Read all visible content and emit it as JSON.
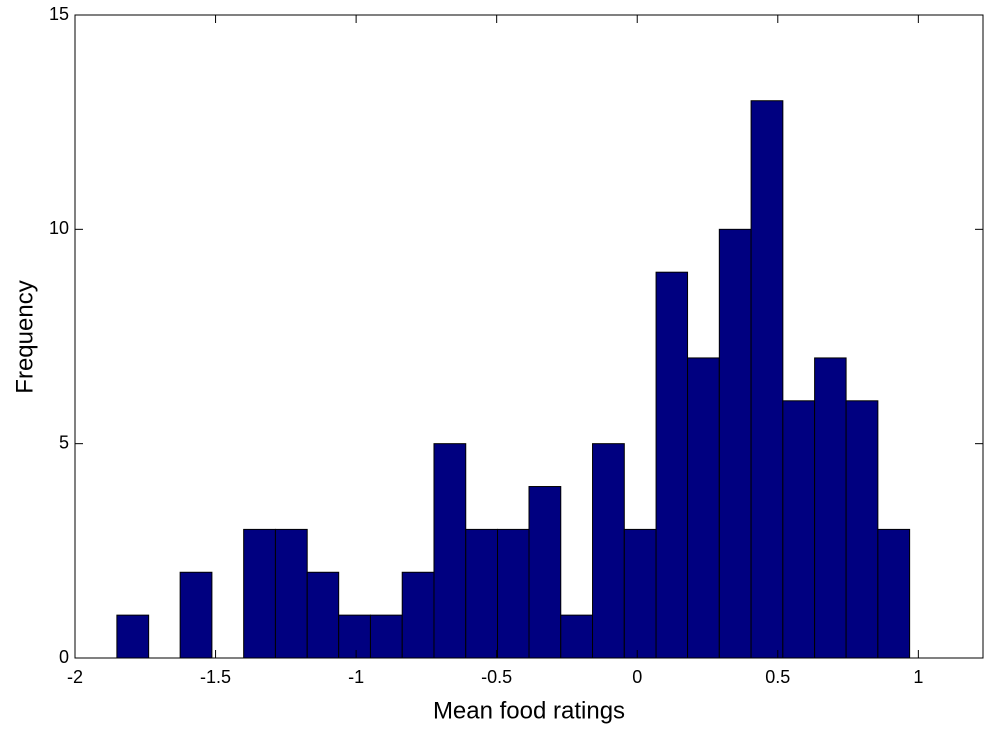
{
  "chart_data": {
    "type": "histogram",
    "x_label": "Mean food ratings",
    "y_label": "Frequency",
    "bins": [
      -1.851,
      -1.738,
      -1.626,
      -1.513,
      -1.4,
      -1.287,
      -1.174,
      -1.062,
      -0.949,
      -0.836,
      -0.723,
      -0.61,
      -0.497,
      -0.385,
      -0.272,
      -0.159,
      -0.046,
      0.067,
      0.179,
      0.292,
      0.405,
      0.518,
      0.631,
      0.743,
      0.856,
      0.969
    ],
    "values": [
      1,
      0,
      2,
      0,
      3,
      3,
      2,
      1,
      1,
      2,
      5,
      3,
      3,
      4,
      1,
      5,
      3,
      9,
      7,
      10,
      13,
      6,
      7,
      6,
      3
    ],
    "color": "#000080",
    "xlim": [
      -2,
      1.23
    ],
    "ylim": [
      0,
      15
    ],
    "xticks": [
      -2,
      -1.5,
      -1,
      -0.5,
      0,
      0.5,
      1
    ],
    "yticks": [
      0,
      5,
      10,
      15
    ]
  }
}
